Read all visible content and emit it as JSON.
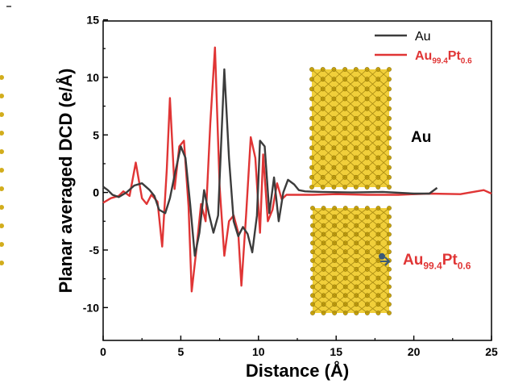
{
  "chart_data": {
    "type": "line",
    "xlabel": "Distance (Å)",
    "ylabel": "Planar averaged DCD (e/Å)",
    "xlim": [
      0,
      25
    ],
    "ylim": [
      -12.5,
      15
    ],
    "x_ticks": [
      "0",
      "5",
      "10",
      "15",
      "20",
      "25"
    ],
    "y_ticks": [
      "-10",
      "-5",
      "0",
      "5",
      "10",
      "15"
    ],
    "legend_position": "top-right",
    "series": [
      {
        "name": "Au",
        "color": "#3c3c3c",
        "points": [
          [
            0,
            0.5
          ],
          [
            0.3,
            0.2
          ],
          [
            0.6,
            -0.2
          ],
          [
            1.0,
            -0.4
          ],
          [
            1.5,
            0.0
          ],
          [
            2.0,
            0.6
          ],
          [
            2.5,
            0.8
          ],
          [
            3.0,
            0.2
          ],
          [
            3.3,
            -0.3
          ],
          [
            3.6,
            -1.5
          ],
          [
            4.0,
            -1.8
          ],
          [
            4.3,
            -0.5
          ],
          [
            4.6,
            1.5
          ],
          [
            5.0,
            4.0
          ],
          [
            5.3,
            3.0
          ],
          [
            5.6,
            -1.0
          ],
          [
            5.9,
            -5.5
          ],
          [
            6.2,
            -3.5
          ],
          [
            6.5,
            0.2
          ],
          [
            6.8,
            -1.8
          ],
          [
            7.1,
            -3.5
          ],
          [
            7.4,
            -2.0
          ],
          [
            7.8,
            10.7
          ],
          [
            8.1,
            3.0
          ],
          [
            8.4,
            -2.5
          ],
          [
            8.7,
            -3.8
          ],
          [
            9.0,
            -3.0
          ],
          [
            9.3,
            -3.6
          ],
          [
            9.6,
            -5.2
          ],
          [
            9.9,
            -2.0
          ],
          [
            10.1,
            4.5
          ],
          [
            10.4,
            4.0
          ],
          [
            10.7,
            -1.8
          ],
          [
            11.0,
            1.3
          ],
          [
            11.3,
            -2.5
          ],
          [
            11.6,
            0.0
          ],
          [
            11.9,
            1.1
          ],
          [
            12.3,
            0.7
          ],
          [
            12.6,
            0.2
          ],
          [
            13.0,
            0.1
          ],
          [
            14.0,
            0.05
          ],
          [
            16.0,
            0.0
          ],
          [
            18.0,
            0.05
          ],
          [
            20.0,
            -0.1
          ],
          [
            21.0,
            -0.1
          ],
          [
            21.5,
            0.4
          ]
        ]
      },
      {
        "name": "Au99.4Pt0.6",
        "color": "#e03535",
        "points": [
          [
            0,
            -0.9
          ],
          [
            0.5,
            -0.5
          ],
          [
            1.0,
            -0.3
          ],
          [
            1.3,
            0.1
          ],
          [
            1.7,
            -0.3
          ],
          [
            2.1,
            2.6
          ],
          [
            2.5,
            -0.5
          ],
          [
            2.8,
            -1.0
          ],
          [
            3.1,
            -0.2
          ],
          [
            3.5,
            -0.8
          ],
          [
            3.8,
            -4.7
          ],
          [
            4.1,
            2.0
          ],
          [
            4.3,
            8.2
          ],
          [
            4.6,
            0.3
          ],
          [
            4.9,
            4.0
          ],
          [
            5.2,
            4.5
          ],
          [
            5.5,
            -1.2
          ],
          [
            5.7,
            -8.6
          ],
          [
            6.0,
            -5.0
          ],
          [
            6.3,
            -1.0
          ],
          [
            6.6,
            -2.5
          ],
          [
            6.9,
            6.0
          ],
          [
            7.2,
            12.6
          ],
          [
            7.5,
            0.5
          ],
          [
            7.8,
            -5.5
          ],
          [
            8.1,
            -2.5
          ],
          [
            8.4,
            -2.0
          ],
          [
            8.7,
            -3.5
          ],
          [
            8.9,
            -8.1
          ],
          [
            9.2,
            -2.0
          ],
          [
            9.5,
            4.8
          ],
          [
            9.8,
            3.0
          ],
          [
            10.1,
            -3.5
          ],
          [
            10.3,
            3.3
          ],
          [
            10.6,
            -2.5
          ],
          [
            10.9,
            -1.5
          ],
          [
            11.2,
            0.8
          ],
          [
            11.5,
            -0.6
          ],
          [
            11.8,
            -0.2
          ],
          [
            12.5,
            -0.2
          ],
          [
            13.5,
            -0.2
          ],
          [
            15.0,
            -0.15
          ],
          [
            17.0,
            -0.2
          ],
          [
            19.0,
            -0.2
          ],
          [
            21.0,
            -0.1
          ],
          [
            23.0,
            -0.15
          ],
          [
            24.5,
            0.2
          ],
          [
            25.0,
            -0.1
          ]
        ]
      }
    ],
    "legend": [
      {
        "base": "Au",
        "sub1": "",
        "mid": "",
        "sub2": "",
        "color": "#3c3c3c",
        "text_color": "#000000"
      },
      {
        "base": "Au",
        "sub1": "99.4",
        "mid": "Pt",
        "sub2": "0.6",
        "color": "#e03535",
        "text_color": "#e03535"
      }
    ],
    "annotations": [
      {
        "base": "Au",
        "sub1": "",
        "mid": "",
        "sub2": "",
        "color": "#000000"
      },
      {
        "base": "Au",
        "sub1": "99.4",
        "mid": "Pt",
        "sub2": "0.6",
        "color": "#e03535"
      }
    ]
  }
}
